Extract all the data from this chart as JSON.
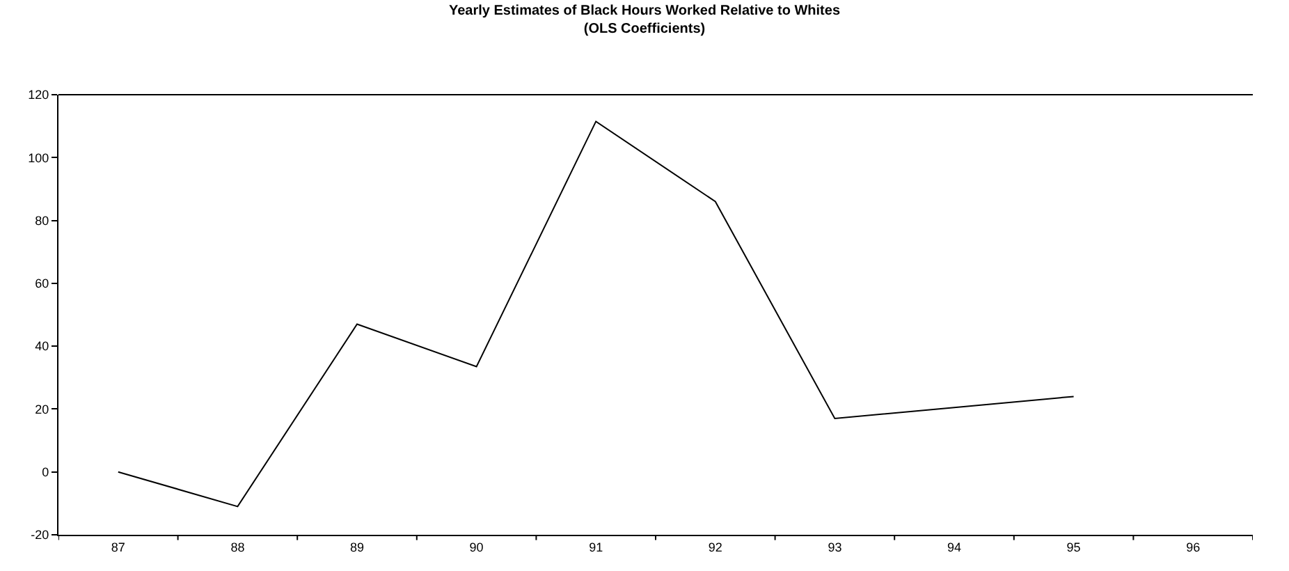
{
  "chart_data": {
    "type": "line",
    "title": "Yearly Estimates of Black Hours Worked Relative to Whites\n(OLS Coefficients)",
    "categories": [
      "87",
      "88",
      "89",
      "90",
      "91",
      "92",
      "93",
      "94",
      "95",
      "96"
    ],
    "series": [
      {
        "color": "#000000",
        "values": [
          0,
          -11,
          47,
          33.5,
          111.5,
          86,
          17,
          20.5,
          24,
          null
        ]
      }
    ],
    "ylim": [
      -20,
      120
    ],
    "yticks": [
      -20,
      0,
      20,
      40,
      60,
      80,
      100,
      120
    ],
    "grid": false,
    "marker": "none",
    "line_style": "solid"
  }
}
